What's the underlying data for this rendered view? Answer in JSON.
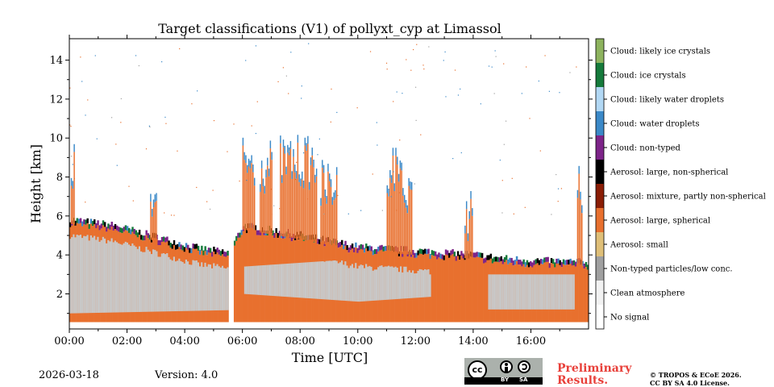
{
  "chart_data": {
    "type": "heatmap",
    "title": "Target classifications (V1) of pollyxt_cyp at Limassol",
    "xlabel": "Time [UTC]",
    "ylabel": "Height [km]",
    "xlim": [
      0,
      18
    ],
    "ylim": [
      0.2,
      15.1
    ],
    "x_ticks": [
      0,
      2,
      4,
      6,
      8,
      10,
      12,
      14,
      16
    ],
    "x_tick_labels": [
      "00:00",
      "02:00",
      "04:00",
      "06:00",
      "08:00",
      "10:00",
      "12:00",
      "14:00",
      "16:00"
    ],
    "y_ticks": [
      2,
      4,
      6,
      8,
      10,
      12,
      14
    ],
    "y_tick_labels": [
      "2",
      "4",
      "6",
      "8",
      "10",
      "12",
      "14"
    ],
    "data_gap_utc": [
      5.55,
      5.65
    ],
    "aerosol_layer_top_km": [
      {
        "t": 0.0,
        "h": 5.6
      },
      {
        "t": 1.5,
        "h": 5.3
      },
      {
        "t": 3.0,
        "h": 4.7
      },
      {
        "t": 4.5,
        "h": 4.1
      },
      {
        "t": 5.5,
        "h": 3.9
      },
      {
        "t": 6.0,
        "h": 5.3
      },
      {
        "t": 8.0,
        "h": 4.8
      },
      {
        "t": 10.0,
        "h": 4.2
      },
      {
        "t": 12.0,
        "h": 4.0
      },
      {
        "t": 14.0,
        "h": 3.8
      },
      {
        "t": 15.0,
        "h": 3.6
      },
      {
        "t": 16.0,
        "h": 3.5
      },
      {
        "t": 18.0,
        "h": 3.4
      }
    ],
    "legend": [
      {
        "label": "Cloud: likely ice crystals",
        "color": "#8db35e"
      },
      {
        "label": "Cloud: ice crystals",
        "color": "#157a3b"
      },
      {
        "label": "Cloud: likely water droplets",
        "color": "#b2d8f4"
      },
      {
        "label": "Cloud: water droplets",
        "color": "#3b89c8"
      },
      {
        "label": "Cloud: non-typed",
        "color": "#7d2489"
      },
      {
        "label": "Aerosol: large, non-spherical",
        "color": "#000000"
      },
      {
        "label": "Aerosol: mixture, partly non-spherical",
        "color": "#8a1d05"
      },
      {
        "label": "Aerosol: large, spherical",
        "color": "#e8702e"
      },
      {
        "label": "Aerosol: small",
        "color": "#dfbf78"
      },
      {
        "label": "Non-typed particles/low conc.",
        "color": "#a0a0a0"
      },
      {
        "label": "Clean atmosphere",
        "color": "#f2f2f2"
      },
      {
        "label": "No signal",
        "color": "#ffffff"
      }
    ]
  },
  "footer": {
    "date": "2026-03-18",
    "version": "Version: 4.0",
    "preliminary_line1": "Preliminary",
    "preliminary_line2": "Results.",
    "copyright_line1": "© TROPOS & ECoE 2026.",
    "copyright_line2": "CC BY SA 4.0 License."
  },
  "license_badge": {
    "cc": "cc",
    "by": "BY",
    "sa": "SA"
  }
}
